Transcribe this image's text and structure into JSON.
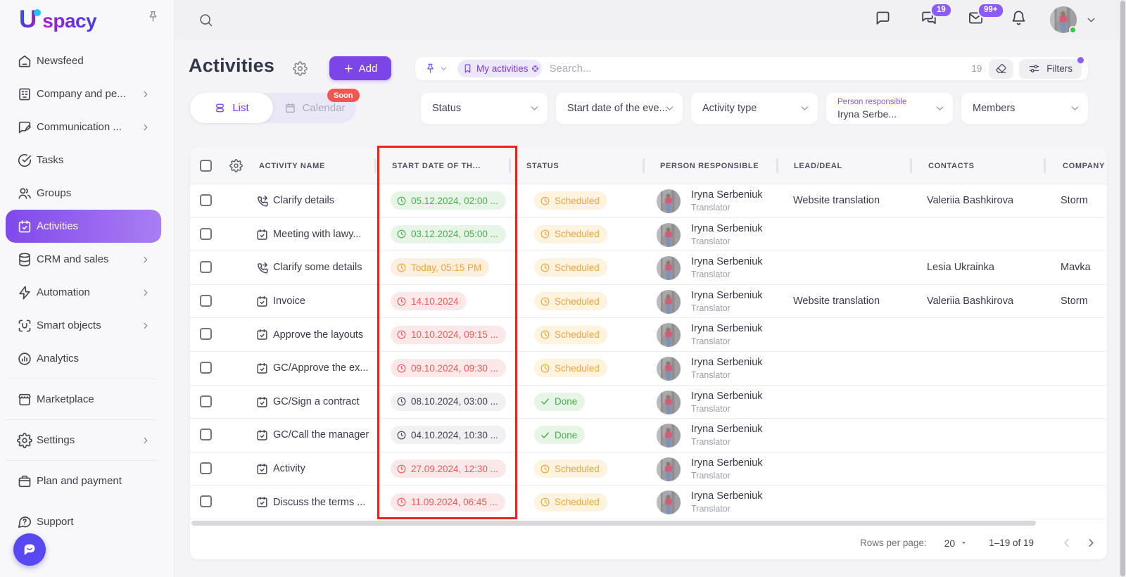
{
  "brand": {
    "logo_letter": "U",
    "logo_rest": "spacy"
  },
  "sidebar": {
    "items": [
      {
        "id": "newsfeed",
        "icon": "home-icon",
        "label": "Newsfeed",
        "chevron": false
      },
      {
        "id": "company",
        "icon": "building-icon",
        "label": "Company and pe...",
        "chevron": true
      },
      {
        "id": "communication",
        "icon": "chat-pen-icon",
        "label": "Communication ...",
        "chevron": true
      },
      {
        "id": "tasks",
        "icon": "check-circle-icon",
        "label": "Tasks",
        "chevron": false
      },
      {
        "id": "groups",
        "icon": "people-icon",
        "label": "Groups",
        "chevron": false
      },
      {
        "id": "activities",
        "icon": "calendar-check-icon",
        "label": "Activities",
        "chevron": false,
        "active": true
      },
      {
        "id": "crm",
        "icon": "database-icon",
        "label": "CRM and sales",
        "chevron": true
      },
      {
        "id": "automation",
        "icon": "lightning-icon",
        "label": "Automation",
        "chevron": true
      },
      {
        "id": "smart-objects",
        "icon": "scan-u-icon",
        "label": "Smart objects",
        "chevron": true
      },
      {
        "id": "analytics",
        "icon": "analytics-icon",
        "label": "Analytics",
        "chevron": false
      },
      {
        "type": "divider"
      },
      {
        "id": "marketplace",
        "icon": "storefront-icon",
        "label": "Marketplace",
        "chevron": false
      },
      {
        "type": "divider"
      },
      {
        "id": "settings",
        "icon": "gear-icon",
        "label": "Settings",
        "chevron": true
      },
      {
        "type": "divider"
      },
      {
        "id": "plan-payment",
        "icon": "wallet-icon",
        "label": "Plan and payment",
        "chevron": false
      },
      {
        "id": "support",
        "icon": "chat-question-icon",
        "label": "Support",
        "chevron": false,
        "gap": true
      }
    ]
  },
  "topbar": {
    "chats_badge": "19",
    "mail_badge": "99+"
  },
  "page": {
    "title": "Activities",
    "add_label": "Add"
  },
  "tabs": {
    "list": "List",
    "calendar": "Calendar",
    "soon": "Soon"
  },
  "search": {
    "chip": "My activities",
    "placeholder": "Search...",
    "count": "19",
    "filters_label": "Filters"
  },
  "filters": [
    {
      "label": "Status"
    },
    {
      "label": "Start date of the eve..."
    },
    {
      "label": "Activity type"
    },
    {
      "label": "Person responsible",
      "value": "Iryna Serbe..."
    },
    {
      "label": "Members"
    }
  ],
  "table": {
    "columns": [
      "ACTIVITY NAME",
      "START DATE OF TH...",
      "STATUS",
      "PERSON RESPONSIBLE",
      "LEAD/DEAL",
      "CONTACTS",
      "COMPANY"
    ],
    "rows": [
      {
        "icon": "phone-forward-icon",
        "name": "Clarify details",
        "date": "05.12.2024, 02:00 ...",
        "date_color": "green",
        "status": "Scheduled",
        "status_type": "sched",
        "person": "Iryna Serbeniuk",
        "person_role": "Translator",
        "lead": "Website translation",
        "contact": "Valeriia Bashkirova",
        "company": "Storm"
      },
      {
        "icon": "calendar-check-icon",
        "name": "Meeting with lawy...",
        "date": "03.12.2024, 05:00 ...",
        "date_color": "green",
        "status": "Scheduled",
        "status_type": "sched",
        "person": "Iryna Serbeniuk",
        "person_role": "Translator",
        "lead": "",
        "contact": "",
        "company": ""
      },
      {
        "icon": "phone-forward-icon",
        "name": "Clarify some details",
        "date": "Today, 05:15 PM",
        "date_color": "orange",
        "status": "Scheduled",
        "status_type": "sched",
        "person": "Iryna Serbeniuk",
        "person_role": "Translator",
        "lead": "",
        "contact": "Lesia Ukrainka",
        "company": "Mavka"
      },
      {
        "icon": "calendar-check-icon",
        "name": "Invoice",
        "date": "14.10.2024",
        "date_color": "red",
        "status": "Scheduled",
        "status_type": "sched",
        "person": "Iryna Serbeniuk",
        "person_role": "Translator",
        "lead": "Website translation",
        "contact": "Valeriia Bashkirova",
        "company": "Storm"
      },
      {
        "icon": "calendar-check-icon",
        "name": "Approve the layouts",
        "date": "10.10.2024, 09:15 ...",
        "date_color": "red",
        "status": "Scheduled",
        "status_type": "sched",
        "person": "Iryna Serbeniuk",
        "person_role": "Translator",
        "lead": "",
        "contact": "",
        "company": ""
      },
      {
        "icon": "calendar-check-icon",
        "name": "GC/Approve the ex...",
        "date": "09.10.2024, 09:30 ...",
        "date_color": "red",
        "status": "Scheduled",
        "status_type": "sched",
        "person": "Iryna Serbeniuk",
        "person_role": "Translator",
        "lead": "",
        "contact": "",
        "company": ""
      },
      {
        "icon": "calendar-check-icon",
        "name": "GC/Sign a contract",
        "date": "08.10.2024, 03:00 ...",
        "date_color": "gray",
        "status": "Done",
        "status_type": "done",
        "person": "Iryna Serbeniuk",
        "person_role": "Translator",
        "lead": "",
        "contact": "",
        "company": ""
      },
      {
        "icon": "calendar-check-icon",
        "name": "GC/Call the manager",
        "date": "04.10.2024, 10:30 ...",
        "date_color": "gray",
        "status": "Done",
        "status_type": "done",
        "person": "Iryna Serbeniuk",
        "person_role": "Translator",
        "lead": "",
        "contact": "",
        "company": ""
      },
      {
        "icon": "calendar-check-icon",
        "name": "Activity",
        "date": "27.09.2024, 12:30 ...",
        "date_color": "red",
        "status": "Scheduled",
        "status_type": "sched",
        "person": "Iryna Serbeniuk",
        "person_role": "Translator",
        "lead": "",
        "contact": "",
        "company": ""
      },
      {
        "icon": "calendar-check-icon",
        "name": "Discuss the terms ...",
        "date": "11.09.2024, 06:45 ...",
        "date_color": "red",
        "status": "Scheduled",
        "status_type": "sched",
        "person": "Iryna Serbeniuk",
        "person_role": "Translator",
        "lead": "",
        "contact": "",
        "company": ""
      }
    ]
  },
  "pagination": {
    "rows_per_page_label": "Rows per page:",
    "rows_per_page": "20",
    "range": "1–19 of 19"
  }
}
